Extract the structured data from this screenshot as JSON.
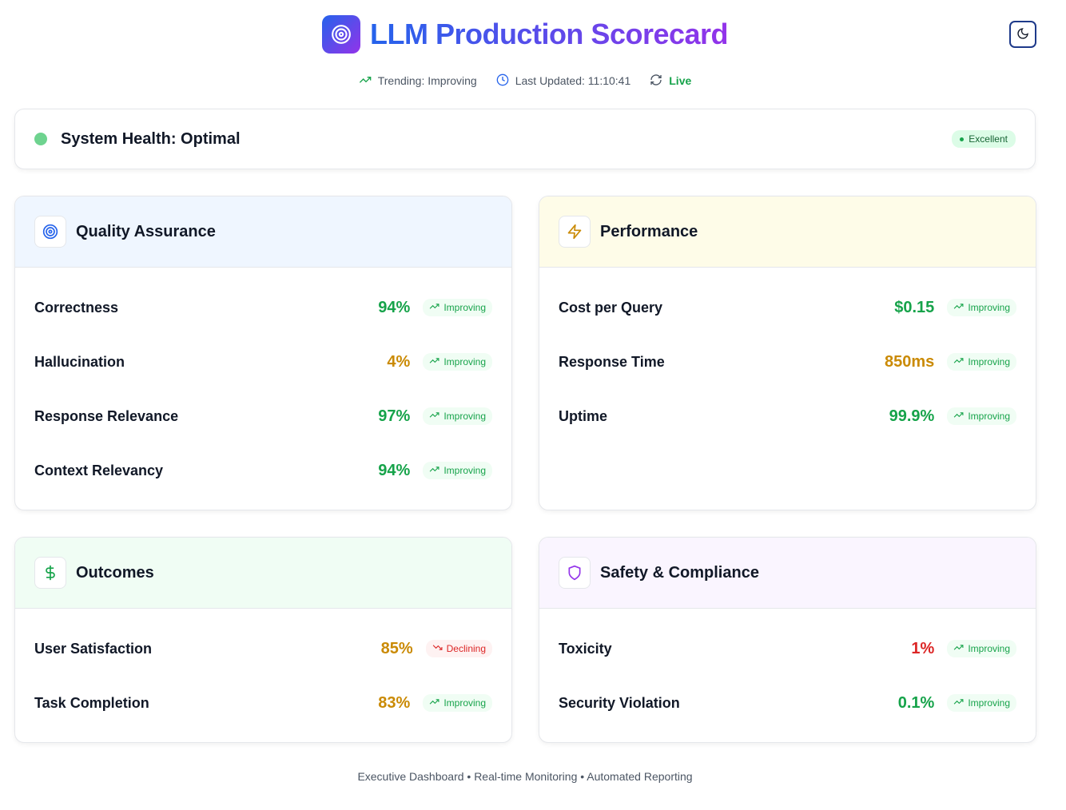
{
  "header": {
    "title": "LLM Production Scorecard",
    "trending": "Trending: Improving",
    "last_updated": "Last Updated: 11:10:41",
    "live": "Live"
  },
  "health": {
    "title": "System Health: Optimal",
    "badge": "Excellent"
  },
  "quality": {
    "title": "Quality Assurance",
    "rows": [
      {
        "label": "Correctness",
        "value": "94%",
        "trend": "Improving"
      },
      {
        "label": "Hallucination",
        "value": "4%",
        "trend": "Improving"
      },
      {
        "label": "Response Relevance",
        "value": "97%",
        "trend": "Improving"
      },
      {
        "label": "Context Relevancy",
        "value": "94%",
        "trend": "Improving"
      }
    ]
  },
  "performance": {
    "title": "Performance",
    "rows": [
      {
        "label": "Cost per Query",
        "value": "$0.15",
        "trend": "Improving"
      },
      {
        "label": "Response Time",
        "value": "850ms",
        "trend": "Improving"
      },
      {
        "label": "Uptime",
        "value": "99.9%",
        "trend": "Improving"
      }
    ]
  },
  "outcomes": {
    "title": "Outcomes",
    "rows": [
      {
        "label": "User Satisfaction",
        "value": "85%",
        "trend": "Declining"
      },
      {
        "label": "Task Completion",
        "value": "83%",
        "trend": "Improving"
      }
    ]
  },
  "safety": {
    "title": "Safety & Compliance",
    "rows": [
      {
        "label": "Toxicity",
        "value": "1%",
        "trend": "Improving"
      },
      {
        "label": "Security Violation",
        "value": "0.1%",
        "trend": "Improving"
      }
    ]
  },
  "footer": {
    "text": "Executive Dashboard • Real-time Monitoring • Automated Reporting"
  },
  "colors": {
    "brand_blue": "#2563eb",
    "brand_purple": "#9333ea",
    "good": "#16a34a",
    "warn": "#ca8a04",
    "bad": "#dc2626"
  }
}
